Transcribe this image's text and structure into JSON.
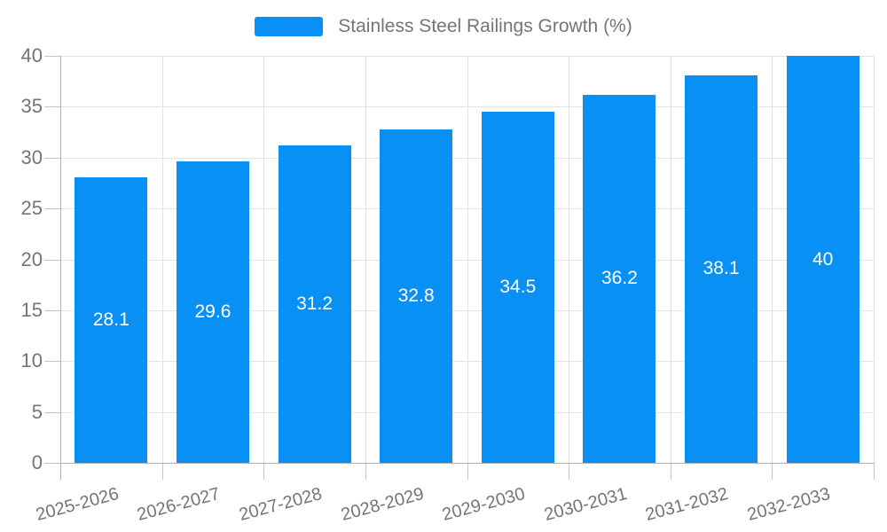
{
  "legend": {
    "label": "Stainless Steel Railings Growth (%)"
  },
  "colors": {
    "bar": "#0990f5",
    "bar_label": "#ffffff",
    "axis_text": "#757575",
    "grid_line": "#e3e3e3",
    "axis_line": "#b0b0b0",
    "tick_line": "#c4c4c4",
    "background": "#ffffff"
  },
  "chart_data": {
    "type": "bar",
    "title": "Stainless Steel Railings Growth (%)",
    "categories": [
      "2025-2026",
      "2026-2027",
      "2027-2028",
      "2028-2029",
      "2029-2030",
      "2030-2031",
      "2031-2032",
      "2032-2033"
    ],
    "values": [
      28.1,
      29.6,
      31.2,
      32.8,
      34.5,
      36.2,
      38.1,
      40
    ],
    "bar_labels": [
      "28.1",
      "29.6",
      "31.2",
      "32.8",
      "34.5",
      "36.2",
      "38.1",
      "40"
    ],
    "series_name": "Stainless Steel Railings Growth (%)",
    "xlabel": "",
    "ylabel": "",
    "ylim": [
      0,
      40
    ],
    "yticks": [
      0,
      5,
      10,
      15,
      20,
      25,
      30,
      35,
      40
    ],
    "grid": true,
    "legend_position": "top-center",
    "x_label_rotation_deg": -15,
    "value_labels_position": "inside-center"
  }
}
